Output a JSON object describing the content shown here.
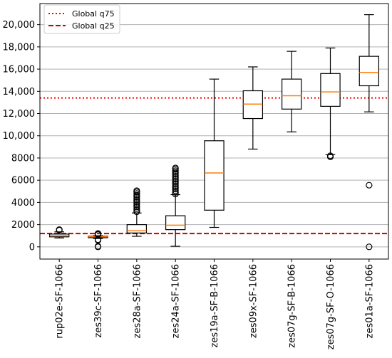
{
  "chart_data": {
    "type": "boxplot",
    "categories": [
      "rup02e-SF-1066",
      "zes39c-SF-1066",
      "zes28a-SF-1066",
      "zes24a-SF-1066",
      "zes19a-SF-B-1066",
      "zes09x-SF-1066",
      "zes07g-SF-B-1066",
      "zes07g-SF-O-1066",
      "zes01a-SF-1066"
    ],
    "boxes": [
      {
        "whislo": 800,
        "q1": 900,
        "med": 1000,
        "q3": 1150,
        "whishi": 1350,
        "fliers": [
          1500,
          1550
        ]
      },
      {
        "whislo": 750,
        "q1": 820,
        "med": 900,
        "q3": 950,
        "whishi": 1000,
        "fliers": [
          0,
          50,
          600,
          650,
          1100,
          1150,
          1200
        ]
      },
      {
        "whislo": 950,
        "q1": 1250,
        "med": 1450,
        "q3": 2000,
        "whishi": 3050,
        "fliers": [
          3150,
          3300,
          3450,
          3600,
          3750,
          3900,
          4050,
          4200,
          4350,
          4500,
          4650,
          4800,
          4950,
          5050
        ]
      },
      {
        "whislo": 50,
        "q1": 1550,
        "med": 1950,
        "q3": 2800,
        "whishi": 4700,
        "fliers": [
          4750,
          4900,
          5050,
          5200,
          5350,
          5500,
          5650,
          5800,
          5950,
          6100,
          6250,
          6400,
          6550,
          6700,
          6850,
          7000,
          7100
        ]
      },
      {
        "whislo": 1750,
        "q1": 3300,
        "med": 6650,
        "q3": 9550,
        "whishi": 15100,
        "fliers": []
      },
      {
        "whislo": 8800,
        "q1": 11550,
        "med": 12850,
        "q3": 14050,
        "whishi": 16200,
        "fliers": []
      },
      {
        "whislo": 10350,
        "q1": 12400,
        "med": 13600,
        "q3": 15100,
        "whishi": 17600,
        "fliers": []
      },
      {
        "whislo": 8300,
        "q1": 12650,
        "med": 13950,
        "q3": 15600,
        "whishi": 17900,
        "fliers": [
          8100,
          8200
        ]
      },
      {
        "whislo": 12150,
        "q1": 14500,
        "med": 15700,
        "q3": 17150,
        "whishi": 20900,
        "fliers": [
          0,
          5550
        ]
      }
    ],
    "hlines": [
      {
        "name": "Global q75",
        "value": 13400,
        "color": "#ff0000",
        "style": "dotted"
      },
      {
        "name": "Global q25",
        "value": 1200,
        "color": "#cc0000",
        "style": "dashed"
      }
    ],
    "ylim": [
      -1100,
      21900
    ],
    "yticks": [
      0,
      2000,
      4000,
      6000,
      8000,
      10000,
      12000,
      14000,
      16000,
      18000,
      20000
    ],
    "ytick_labels": [
      "0",
      "2000",
      "4000",
      "6000",
      "8000",
      "10,000",
      "12,000",
      "14,000",
      "16,000",
      "18,000",
      "20,000"
    ],
    "grid": "horizontal",
    "legend_position": "top-left",
    "colors": {
      "box": "#000000",
      "median": "#ff7f0e",
      "grid": "#b0b0b0"
    }
  }
}
